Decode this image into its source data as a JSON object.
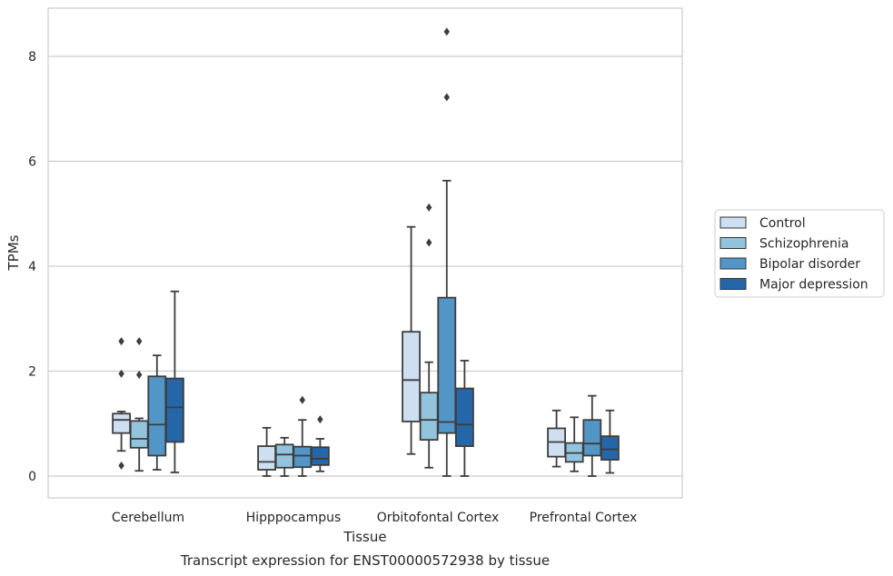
{
  "chart_data": {
    "type": "box",
    "title": "Transcript expression for ENST00000572938 by tissue",
    "xlabel": "Tissue",
    "ylabel": "TPMs",
    "ylim": [
      -0.4,
      8.9
    ],
    "yticks": [
      0,
      2,
      4,
      6,
      8
    ],
    "grid": "horizontal",
    "legend_position": "right",
    "categories": [
      "Cerebellum",
      "Hipppocampus",
      "Orbitofontal Cortex",
      "Prefrontal Cortex"
    ],
    "series": [
      {
        "name": "Control",
        "color": "#cddff0",
        "boxes": [
          {
            "whislo": 0.48,
            "q1": 0.82,
            "med": 1.07,
            "q3": 1.19,
            "whishi": 1.23,
            "fliers": [
              0.2,
              1.95,
              2.57
            ]
          },
          {
            "whislo": 0.0,
            "q1": 0.12,
            "med": 0.27,
            "q3": 0.57,
            "whishi": 0.92,
            "fliers": []
          },
          {
            "whislo": 0.42,
            "q1": 1.04,
            "med": 1.83,
            "q3": 2.75,
            "whishi": 4.75,
            "fliers": []
          },
          {
            "whislo": 0.18,
            "q1": 0.37,
            "med": 0.65,
            "q3": 0.91,
            "whishi": 1.25,
            "fliers": []
          }
        ]
      },
      {
        "name": "Schizophrenia",
        "color": "#93c4de",
        "boxes": [
          {
            "whislo": 0.1,
            "q1": 0.54,
            "med": 0.71,
            "q3": 1.05,
            "whishi": 1.1,
            "fliers": [
              1.93,
              2.57
            ]
          },
          {
            "whislo": 0.0,
            "q1": 0.16,
            "med": 0.41,
            "q3": 0.6,
            "whishi": 0.73,
            "fliers": []
          },
          {
            "whislo": 0.16,
            "q1": 0.69,
            "med": 1.07,
            "q3": 1.59,
            "whishi": 2.17,
            "fliers": [
              4.45,
              5.12
            ]
          },
          {
            "whislo": 0.09,
            "q1": 0.27,
            "med": 0.44,
            "q3": 0.63,
            "whishi": 1.12,
            "fliers": []
          }
        ]
      },
      {
        "name": "Bipolar disorder",
        "color": "#5296c8",
        "boxes": [
          {
            "whislo": 0.12,
            "q1": 0.39,
            "med": 0.98,
            "q3": 1.9,
            "whishi": 2.3,
            "fliers": []
          },
          {
            "whislo": 0.0,
            "q1": 0.17,
            "med": 0.39,
            "q3": 0.56,
            "whishi": 1.07,
            "fliers": [
              1.45
            ]
          },
          {
            "whislo": 0.0,
            "q1": 0.82,
            "med": 1.03,
            "q3": 3.4,
            "whishi": 5.63,
            "fliers": [
              7.22,
              8.47
            ]
          },
          {
            "whislo": 0.0,
            "q1": 0.39,
            "med": 0.62,
            "q3": 1.07,
            "whishi": 1.53,
            "fliers": []
          }
        ]
      },
      {
        "name": "Major depression",
        "color": "#2566a8",
        "boxes": [
          {
            "whislo": 0.07,
            "q1": 0.65,
            "med": 1.31,
            "q3": 1.86,
            "whishi": 3.52,
            "fliers": []
          },
          {
            "whislo": 0.09,
            "q1": 0.21,
            "med": 0.33,
            "q3": 0.55,
            "whishi": 0.71,
            "fliers": [
              1.08
            ]
          },
          {
            "whislo": 0.0,
            "q1": 0.57,
            "med": 0.98,
            "q3": 1.67,
            "whishi": 2.2,
            "fliers": []
          },
          {
            "whislo": 0.06,
            "q1": 0.31,
            "med": 0.51,
            "q3": 0.76,
            "whishi": 1.25,
            "fliers": []
          }
        ]
      }
    ]
  }
}
